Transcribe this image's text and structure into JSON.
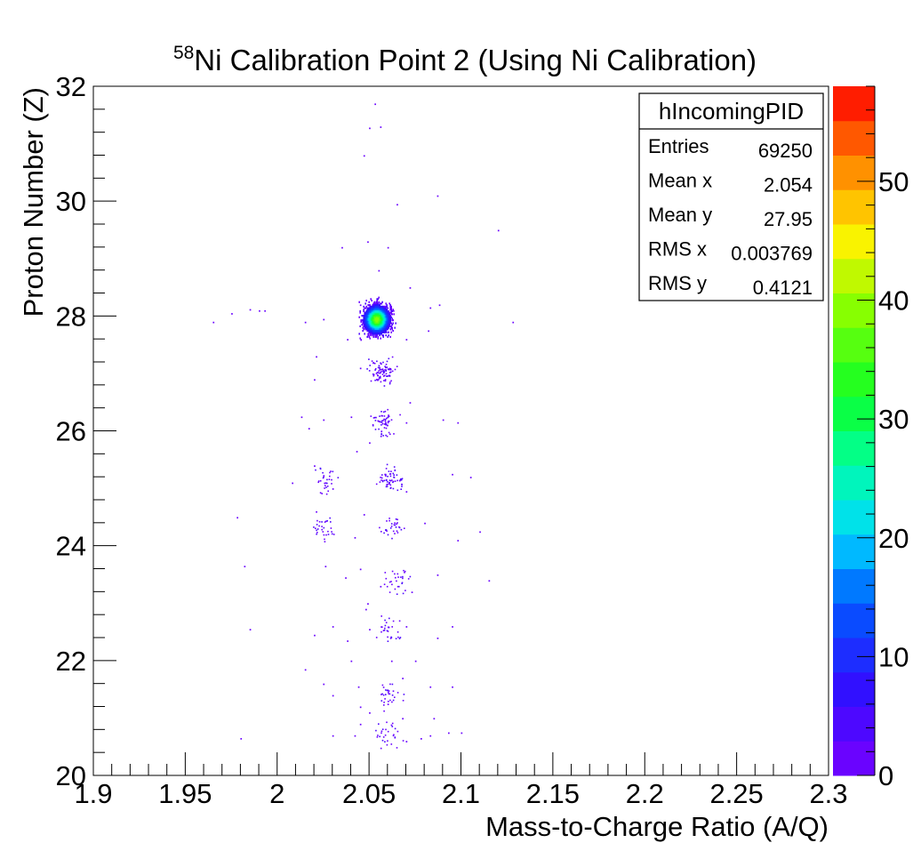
{
  "chart_data": {
    "type": "heatmap",
    "title": {
      "superscript": "58",
      "text": "Ni Calibration Point 2 (Using Ni Calibration)"
    },
    "xlabel": "Mass-to-Charge Ratio (A/Q)",
    "ylabel": "Proton Number (Z)",
    "xlim": [
      1.9,
      2.3
    ],
    "ylim": [
      20,
      32
    ],
    "x_ticks": [
      1.9,
      1.95,
      2.0,
      2.05,
      2.1,
      2.15,
      2.2,
      2.25,
      2.3
    ],
    "x_tick_labels": [
      "1.9",
      "1.95",
      "2",
      "2.05",
      "2.1",
      "2.15",
      "2.2",
      "2.25",
      "2.3"
    ],
    "y_ticks": [
      20,
      22,
      24,
      26,
      28,
      30,
      32
    ],
    "y_tick_labels": [
      "20",
      "22",
      "24",
      "26",
      "28",
      "30",
      "32"
    ],
    "colorbar": {
      "range": [
        0,
        58
      ],
      "ticks": [
        0,
        10,
        20,
        30,
        40,
        50
      ],
      "tick_labels": [
        "0",
        "10",
        "20",
        "30",
        "40",
        "50"
      ],
      "bands": 20
    },
    "stats_box": {
      "name": "hIncomingPID",
      "position": "top-right",
      "rows": [
        {
          "label": "Entries",
          "value": "69250"
        },
        {
          "label": "Mean x",
          "value": "2.054"
        },
        {
          "label": "Mean y",
          "value": "27.95"
        },
        {
          "label": "RMS x",
          "value": "0.003769"
        },
        {
          "label": "RMS y",
          "value": "0.4121"
        }
      ]
    },
    "main_peak": {
      "x": 2.054,
      "y": 27.95,
      "peak_counts": 40
    },
    "clusters": [
      {
        "x": 2.057,
        "y": 27.05,
        "weight": 3
      },
      {
        "x": 2.058,
        "y": 26.15,
        "weight": 2
      },
      {
        "x": 2.062,
        "y": 25.2,
        "weight": 2
      },
      {
        "x": 2.025,
        "y": 25.15,
        "weight": 1
      },
      {
        "x": 2.062,
        "y": 24.35,
        "weight": 1
      },
      {
        "x": 2.025,
        "y": 24.3,
        "weight": 1
      },
      {
        "x": 2.065,
        "y": 23.4,
        "weight": 1
      },
      {
        "x": 2.06,
        "y": 22.55,
        "weight": 1
      },
      {
        "x": 2.06,
        "y": 21.4,
        "weight": 1
      },
      {
        "x": 2.06,
        "y": 20.7,
        "weight": 1
      }
    ],
    "scatter_points": [
      [
        2.053,
        31.7
      ],
      [
        2.056,
        31.3
      ],
      [
        2.05,
        31.28
      ],
      [
        2.047,
        30.8
      ],
      [
        2.087,
        30.1
      ],
      [
        2.065,
        29.95
      ],
      [
        2.049,
        29.3
      ],
      [
        2.06,
        29.2
      ],
      [
        2.12,
        29.5
      ],
      [
        2.035,
        29.2
      ],
      [
        2.055,
        28.8
      ],
      [
        2.072,
        28.5
      ],
      [
        1.99,
        28.1
      ],
      [
        1.985,
        28.12
      ],
      [
        1.993,
        28.1
      ],
      [
        1.975,
        28.05
      ],
      [
        2.025,
        27.95
      ],
      [
        2.083,
        28.15
      ],
      [
        2.088,
        28.2
      ],
      [
        1.965,
        27.9
      ],
      [
        2.128,
        27.9
      ],
      [
        2.015,
        27.9
      ],
      [
        2.045,
        28.2
      ],
      [
        2.063,
        28.1
      ],
      [
        2.07,
        27.6
      ],
      [
        2.082,
        27.75
      ],
      [
        2.021,
        27.3
      ],
      [
        2.038,
        27.6
      ],
      [
        2.045,
        27.1
      ],
      [
        2.02,
        26.9
      ],
      [
        2.072,
        26.5
      ],
      [
        2.017,
        26.05
      ],
      [
        2.025,
        26.2
      ],
      [
        2.013,
        26.25
      ],
      [
        2.09,
        26.2
      ],
      [
        2.098,
        26.15
      ],
      [
        2.07,
        26.15
      ],
      [
        2.04,
        26.25
      ],
      [
        2.043,
        25.65
      ],
      [
        2.05,
        25.8
      ],
      [
        2.03,
        25.0
      ],
      [
        2.008,
        25.1
      ],
      [
        2.02,
        25.4
      ],
      [
        2.095,
        25.25
      ],
      [
        2.105,
        25.2
      ],
      [
        2.07,
        24.95
      ],
      [
        1.978,
        24.5
      ],
      [
        2.021,
        24.6
      ],
      [
        2.042,
        24.15
      ],
      [
        2.047,
        24.55
      ],
      [
        2.08,
        24.4
      ],
      [
        2.11,
        24.25
      ],
      [
        2.098,
        24.1
      ],
      [
        1.982,
        23.65
      ],
      [
        2.026,
        23.65
      ],
      [
        2.037,
        23.45
      ],
      [
        2.045,
        23.6
      ],
      [
        2.056,
        23.3
      ],
      [
        2.087,
        23.5
      ],
      [
        2.115,
        23.4
      ],
      [
        2.073,
        23.2
      ],
      [
        2.048,
        22.9
      ],
      [
        2.049,
        23.0
      ],
      [
        1.985,
        22.55
      ],
      [
        2.02,
        22.45
      ],
      [
        2.03,
        22.6
      ],
      [
        2.038,
        22.35
      ],
      [
        2.05,
        22.55
      ],
      [
        2.07,
        22.6
      ],
      [
        2.087,
        22.4
      ],
      [
        2.095,
        22.6
      ],
      [
        2.015,
        21.85
      ],
      [
        2.04,
        22.0
      ],
      [
        2.062,
        22.0
      ],
      [
        2.075,
        22.0
      ],
      [
        2.025,
        21.6
      ],
      [
        2.044,
        21.55
      ],
      [
        2.068,
        21.7
      ],
      [
        2.083,
        21.55
      ],
      [
        2.095,
        21.55
      ],
      [
        2.03,
        21.4
      ],
      [
        2.045,
        21.2
      ],
      [
        2.05,
        21.1
      ],
      [
        2.06,
        21.25
      ],
      [
        2.068,
        21.0
      ],
      [
        2.085,
        21.0
      ],
      [
        1.98,
        20.65
      ],
      [
        2.03,
        20.7
      ],
      [
        2.042,
        20.7
      ],
      [
        2.045,
        20.9
      ],
      [
        2.07,
        20.6
      ],
      [
        2.078,
        20.65
      ],
      [
        2.083,
        20.7
      ],
      [
        2.093,
        20.75
      ],
      [
        2.1,
        20.75
      ]
    ]
  }
}
